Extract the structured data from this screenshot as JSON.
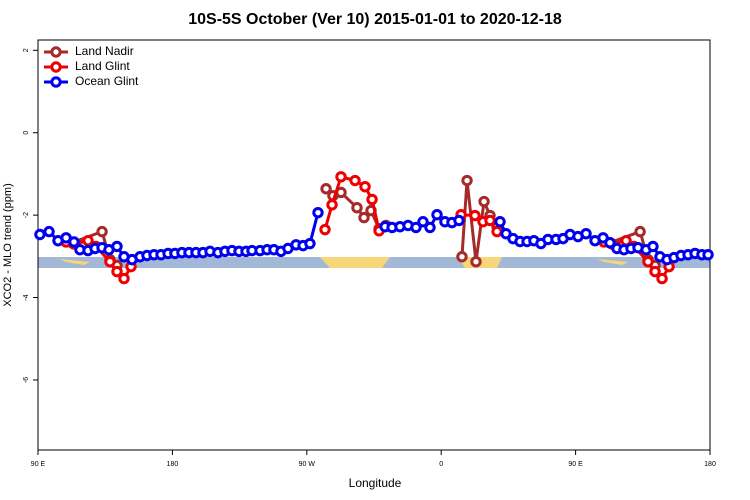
{
  "chart_data": {
    "type": "line",
    "title": "10S-5S October (Ver 10)   2015-01-01 to 2020-12-18",
    "xlabel": "Longitude",
    "ylabel": "XCO2 - MLO trend (ppm)",
    "xlim": [
      90,
      540
    ],
    "ylim": [
      -7.7,
      2.25
    ],
    "xticks": [
      {
        "value": 90,
        "label": "90 E"
      },
      180,
      {
        "value": 270,
        "label": "90 W"
      },
      {
        "value": 360,
        "label": "0"
      },
      {
        "value": 450,
        "label": "90 E"
      },
      {
        "value": 540,
        "label": "180"
      }
    ],
    "yticks": [
      2,
      0,
      -2,
      -4,
      -6
    ],
    "legend": "top-left",
    "series": [
      {
        "name": "Land Nadir",
        "color": "#a52a2a",
        "x": [
          112.8,
          132.9,
          138.2,
          142.9,
          null,
          282.9,
          287.5,
          292.9,
          303.6,
          308.3,
          313.0,
          318.4,
          323.0,
          null,
          373.9,
          377.3,
          383.3,
          388.7,
          392.7,
          397.4,
          null,
          473.0,
          493.2,
          498.5,
          503.2
        ],
        "values": [
          -2.67,
          -2.4,
          -3.08,
          -3.22,
          null,
          -1.36,
          -1.53,
          -1.45,
          -1.82,
          -2.06,
          -1.89,
          -2.33,
          -2.25,
          null,
          -3.01,
          -1.16,
          -3.13,
          -1.67,
          -2.01,
          -2.28,
          null,
          -2.67,
          -2.4,
          -3.08,
          -3.22
        ]
      },
      {
        "name": "Land Glint",
        "color": "#ee0000",
        "x": [
          108.8,
          114.1,
          123.5,
          128.8,
          138.2,
          142.9,
          147.6,
          152.3,
          null,
          282.2,
          286.9,
          292.9,
          302.3,
          309.0,
          313.7,
          318.4,
          null,
          373.3,
          382.6,
          388.0,
          392.7,
          397.4,
          null,
          469.0,
          474.4,
          483.8,
          489.1,
          498.5,
          503.2,
          507.9,
          512.6
        ],
        "values": [
          -2.65,
          -2.7,
          -2.62,
          -2.76,
          -3.13,
          -3.37,
          -3.54,
          -3.25,
          null,
          -2.35,
          -1.75,
          -1.07,
          -1.16,
          -1.31,
          -1.62,
          -2.38,
          null,
          -1.99,
          -2.01,
          -2.16,
          -2.13,
          -2.4,
          null,
          -2.65,
          -2.7,
          -2.62,
          -2.76,
          -3.13,
          -3.37,
          -3.54,
          -3.25
        ]
      },
      {
        "name": "Ocean Glint",
        "color": "#0000ee",
        "x": [
          91.3,
          97.4,
          103.4,
          108.8,
          114.1,
          118.1,
          123.5,
          128.2,
          132.9,
          137.5,
          142.9,
          147.6,
          153.0,
          158.3,
          163.0,
          167.7,
          172.4,
          177.1,
          181.7,
          186.4,
          191.1,
          195.8,
          200.5,
          205.2,
          210.5,
          215.2,
          219.9,
          224.6,
          229.3,
          233.3,
          238.7,
          243.4,
          248.0,
          252.7,
          257.4,
          262.8,
          267.5,
          272.1,
          277.5,
          null,
          322.4,
          327.1,
          332.4,
          337.8,
          343.1,
          347.8,
          352.5,
          357.2,
          362.5,
          367.2,
          371.9,
          null,
          399.4,
          403.4,
          408.1,
          412.8,
          417.5,
          422.1,
          426.8,
          431.5,
          436.9,
          441.6,
          446.3,
          451.6,
          457.0,
          463.0,
          468.4,
          473.0,
          477.7,
          482.4,
          487.1,
          491.8,
          497.2,
          501.8,
          506.5,
          511.2,
          515.9,
          520.6,
          525.3,
          530.0,
          534.6,
          538.7
        ],
        "values": [
          -2.47,
          -2.4,
          -2.62,
          -2.55,
          -2.65,
          -2.84,
          -2.86,
          -2.81,
          -2.79,
          -2.84,
          -2.76,
          -3.01,
          -3.08,
          -3.01,
          -2.98,
          -2.96,
          -2.96,
          -2.93,
          -2.93,
          -2.91,
          -2.91,
          -2.91,
          -2.91,
          -2.88,
          -2.91,
          -2.88,
          -2.86,
          -2.88,
          -2.88,
          -2.86,
          -2.86,
          -2.84,
          -2.84,
          -2.88,
          -2.81,
          -2.72,
          -2.74,
          -2.69,
          -1.94,
          null,
          -2.28,
          -2.3,
          -2.28,
          -2.25,
          -2.3,
          -2.16,
          -2.3,
          -1.99,
          -2.16,
          -2.18,
          -2.13,
          null,
          -2.16,
          -2.45,
          -2.57,
          -2.64,
          -2.64,
          -2.62,
          -2.69,
          -2.59,
          -2.59,
          -2.57,
          -2.47,
          -2.52,
          -2.45,
          -2.62,
          -2.55,
          -2.67,
          -2.81,
          -2.84,
          -2.81,
          -2.79,
          -2.84,
          -2.76,
          -3.01,
          -3.08,
          -3.03,
          -2.98,
          -2.96,
          -2.93,
          -2.96,
          -2.96
        ]
      }
    ]
  }
}
